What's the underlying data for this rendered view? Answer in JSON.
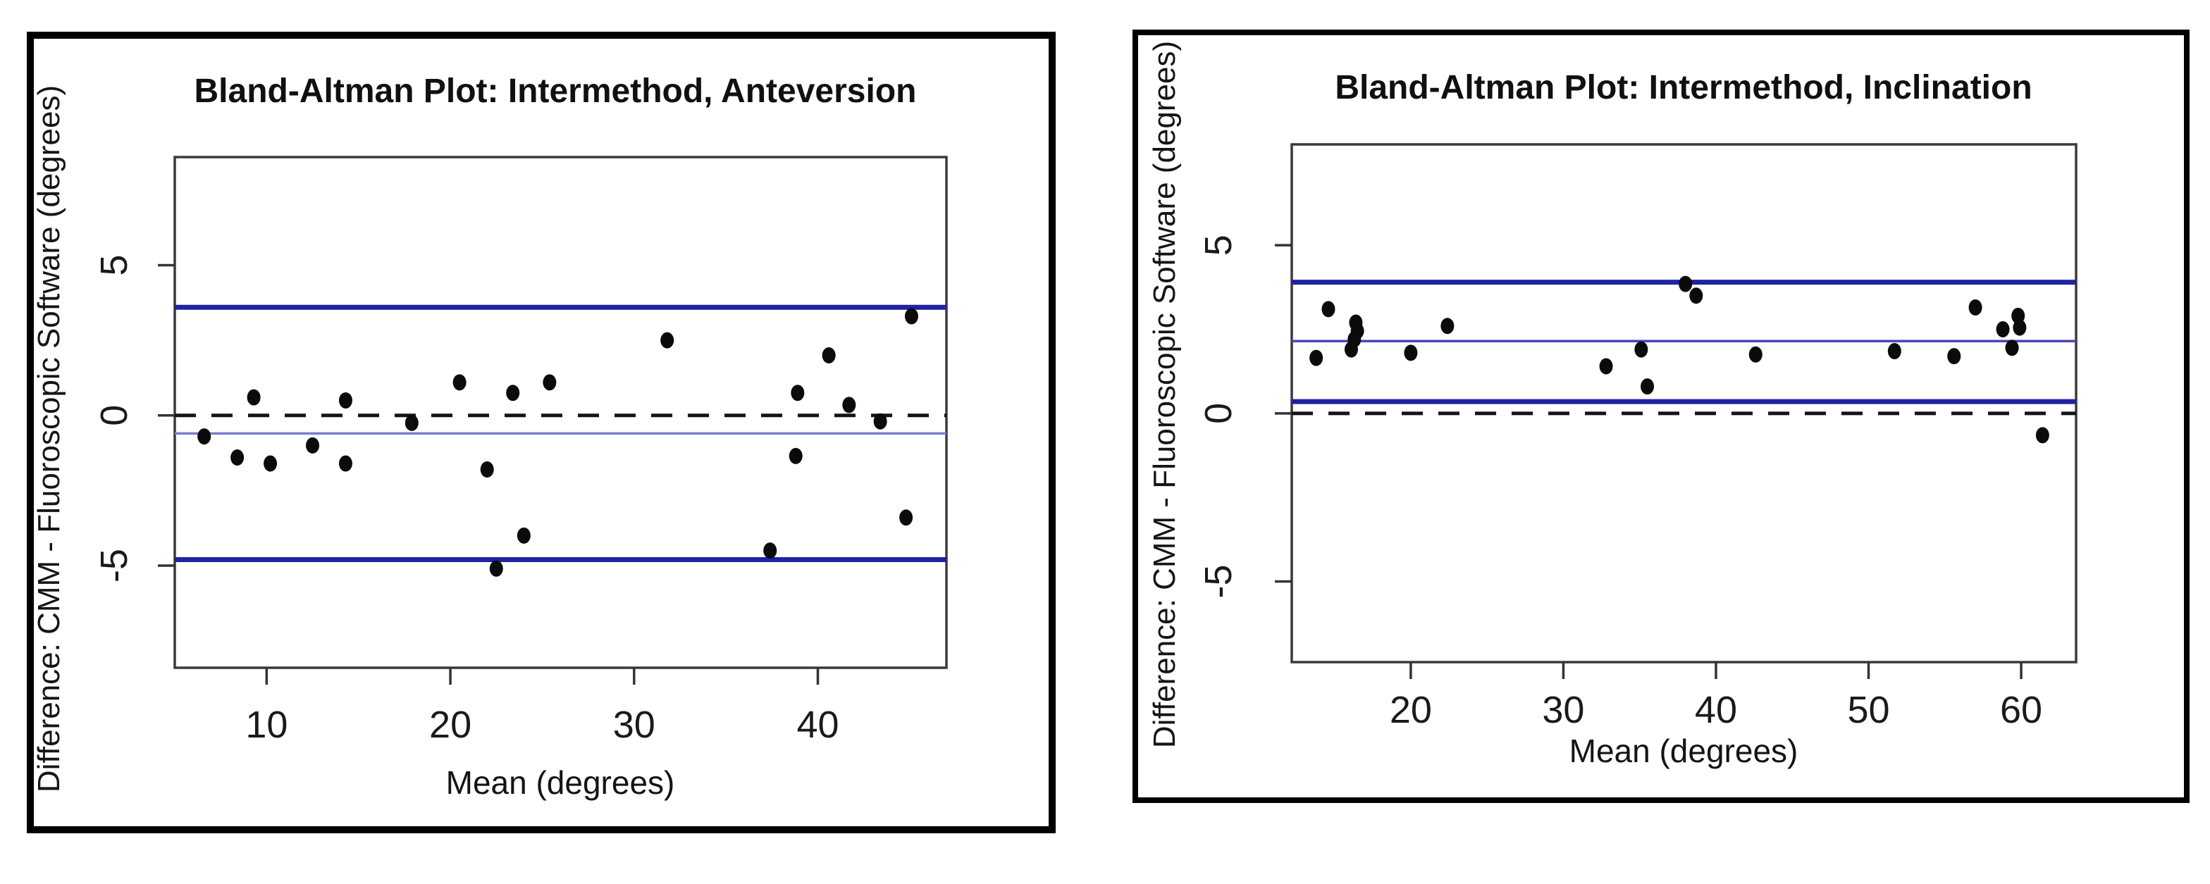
{
  "page": {
    "background": "#ffffff",
    "description_left_plot": "Bland-Altman Plot: Intermethod, Anteversion",
    "description_right_plot": "Bland-Altman Plot: Intermethod, Inclination"
  },
  "colors": {
    "limit_line": "#2121A3",
    "mean_line_left": "#7B7BD1",
    "mean_line_right": "#4848B5",
    "zero_dashed_line": "#141414",
    "point": "#0B0B0B",
    "plot_border": "#3a3a3a",
    "figure_frame": "#000000"
  },
  "chart_data": [
    {
      "type": "scatter",
      "title": "Bland-Altman Plot: Intermethod, Anteversion",
      "xlabel": "Mean (degrees)",
      "ylabel": "Difference: CMM - Fluoroscopic Software (degrees)",
      "xlim": [
        5,
        47
      ],
      "ylim": [
        -8.4,
        8.6
      ],
      "xticks": [
        10,
        20,
        30,
        40
      ],
      "yticks": [
        5,
        0,
        -5
      ],
      "grid": false,
      "legend_position": "none",
      "reference_lines": [
        {
          "name": "upper-limit-of-agreement",
          "value": 3.6,
          "color": "#2121A3",
          "width": 7,
          "style": "solid"
        },
        {
          "name": "zero-reference",
          "value": 0,
          "color": "#141414",
          "width": 5,
          "style": "dashed"
        },
        {
          "name": "mean-difference",
          "value": -0.6,
          "color": "#7B7BD1",
          "width": 3.5,
          "style": "solid"
        },
        {
          "name": "lower-limit-of-agreement",
          "value": -4.8,
          "color": "#2121A3",
          "width": 7,
          "style": "solid"
        }
      ],
      "point_color": "#0B0B0B",
      "points": [
        [
          6.6,
          -0.7
        ],
        [
          8.4,
          -1.4
        ],
        [
          9.3,
          0.6
        ],
        [
          10.2,
          -1.6
        ],
        [
          12.5,
          -1.0
        ],
        [
          14.3,
          0.5
        ],
        [
          14.3,
          -1.6
        ],
        [
          17.9,
          -0.25
        ],
        [
          20.5,
          1.1
        ],
        [
          22.0,
          -1.8
        ],
        [
          22.5,
          -5.1
        ],
        [
          23.4,
          0.75
        ],
        [
          24.0,
          -4.0
        ],
        [
          25.4,
          1.1
        ],
        [
          31.8,
          2.5
        ],
        [
          37.4,
          -4.5
        ],
        [
          38.9,
          0.75
        ],
        [
          38.8,
          -1.35
        ],
        [
          40.6,
          2.0
        ],
        [
          41.7,
          0.35
        ],
        [
          43.4,
          -0.2
        ],
        [
          44.8,
          -3.4
        ],
        [
          45.1,
          3.3
        ]
      ]
    },
    {
      "type": "scatter",
      "title": "Bland-Altman Plot: Intermethod, Inclination",
      "xlabel": "Mean (degrees)",
      "ylabel": "Difference: CMM - Fluoroscopic Software (degrees)",
      "xlim": [
        12.2,
        63.6
      ],
      "ylim": [
        -7.4,
        8.0
      ],
      "xticks": [
        20,
        30,
        40,
        50,
        60
      ],
      "yticks": [
        5,
        0,
        -5
      ],
      "grid": false,
      "legend_position": "none",
      "reference_lines": [
        {
          "name": "upper-limit-of-agreement",
          "value": 3.9,
          "color": "#2121A3",
          "width": 7,
          "style": "solid"
        },
        {
          "name": "mean-difference",
          "value": 2.15,
          "color": "#4848B5",
          "width": 3.5,
          "style": "solid"
        },
        {
          "name": "lower-limit-of-agreement",
          "value": 0.35,
          "color": "#2121A3",
          "width": 7,
          "style": "solid"
        },
        {
          "name": "zero-reference",
          "value": 0,
          "color": "#141414",
          "width": 5,
          "style": "dashed"
        }
      ],
      "point_color": "#0B0B0B",
      "points": [
        [
          13.8,
          1.65
        ],
        [
          14.6,
          3.1
        ],
        [
          16.1,
          1.9
        ],
        [
          16.3,
          2.2
        ],
        [
          16.5,
          2.45
        ],
        [
          16.4,
          2.7
        ],
        [
          20.0,
          1.8
        ],
        [
          22.4,
          2.6
        ],
        [
          32.8,
          1.4
        ],
        [
          35.1,
          1.9
        ],
        [
          35.5,
          0.8
        ],
        [
          38.0,
          3.85
        ],
        [
          38.7,
          3.5
        ],
        [
          42.6,
          1.75
        ],
        [
          51.7,
          1.85
        ],
        [
          55.6,
          1.7
        ],
        [
          57.0,
          3.15
        ],
        [
          58.8,
          2.5
        ],
        [
          59.4,
          1.95
        ],
        [
          59.8,
          2.9
        ],
        [
          59.9,
          2.55
        ],
        [
          61.4,
          -0.65
        ]
      ]
    }
  ]
}
